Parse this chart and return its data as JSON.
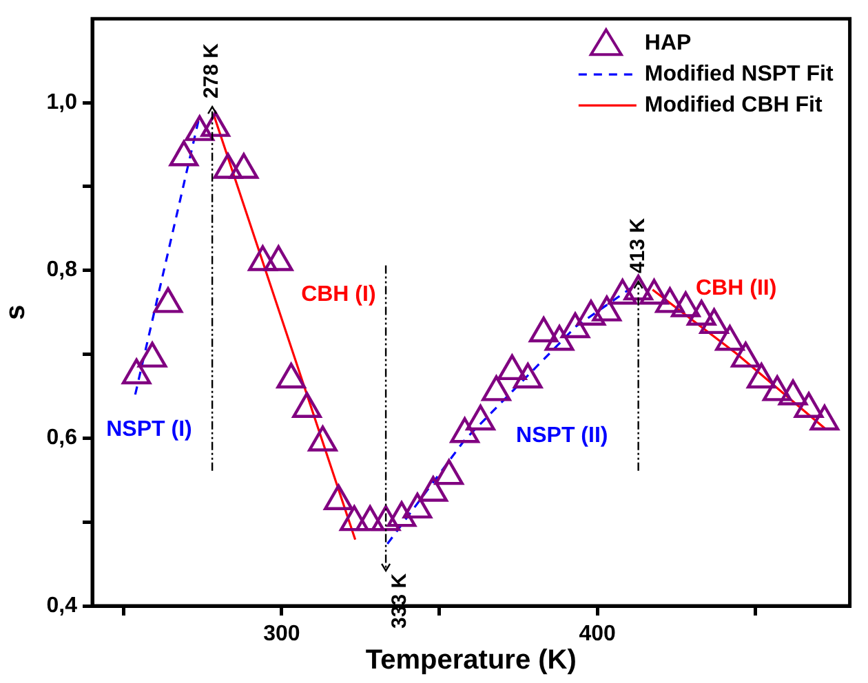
{
  "chart_data": {
    "type": "scatter",
    "xlabel": "Temperature (K)",
    "ylabel": "s",
    "xlim": [
      240,
      480
    ],
    "xticks": [
      {
        "value": 250,
        "label": null
      },
      300,
      {
        "value": 350,
        "label": null
      },
      400,
      {
        "value": 450,
        "label": null
      }
    ],
    "ylim": [
      0.4,
      1.1
    ],
    "yticks": [
      {
        "value": 0.4,
        "label": "0,4"
      },
      {
        "value": 0.5,
        "label": null
      },
      {
        "value": 0.6,
        "label": "0,6"
      },
      {
        "value": 0.7,
        "label": null
      },
      {
        "value": 0.8,
        "label": "0,8"
      },
      {
        "value": 0.9,
        "label": null
      },
      {
        "value": 1.0,
        "label": "1,0"
      }
    ],
    "grid": false,
    "legend": "top right",
    "series": [
      {
        "name": "HAP",
        "marker": "triangle",
        "color": "#800080",
        "x": [
          254,
          259,
          264,
          269,
          274,
          279,
          283,
          288,
          294,
          299,
          303,
          308,
          313,
          318,
          323,
          328,
          333,
          338,
          343,
          348,
          353,
          358,
          363,
          368,
          373,
          378,
          383,
          388,
          393,
          398,
          403,
          408,
          413,
          418,
          423,
          428,
          433,
          437,
          442,
          447,
          452,
          457,
          462,
          467,
          472
        ],
        "values": [
          0.675,
          0.695,
          0.76,
          0.935,
          0.965,
          0.97,
          0.92,
          0.92,
          0.81,
          0.81,
          0.67,
          0.635,
          0.595,
          0.525,
          0.5,
          0.5,
          0.5,
          0.505,
          0.515,
          0.535,
          0.555,
          0.605,
          0.62,
          0.655,
          0.68,
          0.67,
          0.725,
          0.715,
          0.73,
          0.745,
          0.75,
          0.77,
          0.775,
          0.77,
          0.76,
          0.755,
          0.745,
          0.735,
          0.715,
          0.695,
          0.67,
          0.655,
          0.65,
          0.635,
          0.62
        ]
      },
      {
        "name": "Modified NSPT Fit",
        "type": "line",
        "marker": "none",
        "line_style": "dashed",
        "color": "#0000ff",
        "x": [
          253.6,
          273.6,
          300,
          333.5,
          358,
          373.4,
          393.2,
          413
        ],
        "values": [
          0.652,
          0.978,
          null,
          0.474,
          0.598,
          0.657,
          0.733,
          0.785
        ]
      },
      {
        "name": "Modified CBH Fit",
        "type": "line",
        "marker": "none",
        "line_style": "solid",
        "color": "#ff0000",
        "x": [
          278.6,
          323.3,
          380,
          417.5,
          444,
          472.3
        ],
        "values": [
          0.984,
          0.479,
          null,
          0.777,
          0.701,
          0.611
        ]
      }
    ],
    "ref_lines": [
      {
        "axis": "x",
        "value": 278,
        "label": "278 K",
        "line_style": "dashed",
        "color": "#000000"
      },
      {
        "axis": "x",
        "value": 333,
        "label": "333 K",
        "line_style": "dashed",
        "color": "#000000"
      },
      {
        "axis": "x",
        "value": 413,
        "label": "413 K",
        "line_style": "dashed",
        "color": "#000000"
      }
    ],
    "annotations": [
      "NSPT (I)",
      "CBH (I)",
      "NSPT (II)",
      "CBH (II)"
    ]
  }
}
